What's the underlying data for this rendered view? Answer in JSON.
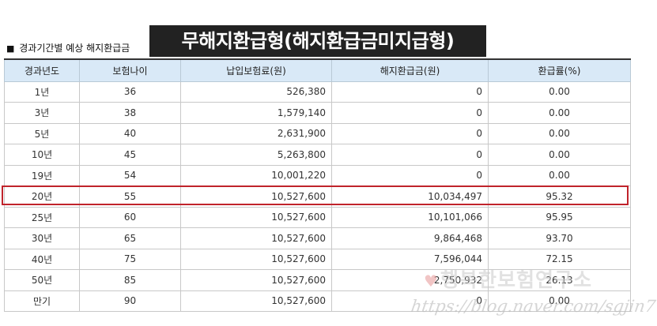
{
  "section_label": "경과기간별 예상 해지환급금",
  "title": "무해지환급형(해지환급금미지급형)",
  "table": {
    "headers": [
      "경과년도",
      "보험나이",
      "납입보험료(원)",
      "해지환급금(원)",
      "환급률(%)"
    ],
    "rows": [
      [
        "1년",
        "36",
        "526,380",
        "0",
        "0.00"
      ],
      [
        "3년",
        "38",
        "1,579,140",
        "0",
        "0.00"
      ],
      [
        "5년",
        "40",
        "2,631,900",
        "0",
        "0.00"
      ],
      [
        "10년",
        "45",
        "5,263,800",
        "0",
        "0.00"
      ],
      [
        "19년",
        "54",
        "10,001,220",
        "0",
        "0.00"
      ],
      [
        "20년",
        "55",
        "10,527,600",
        "10,034,497",
        "95.32"
      ],
      [
        "25년",
        "60",
        "10,527,600",
        "10,101,066",
        "95.95"
      ],
      [
        "30년",
        "65",
        "10,527,600",
        "9,864,468",
        "93.70"
      ],
      [
        "40년",
        "75",
        "10,527,600",
        "7,596,044",
        "72.15"
      ],
      [
        "50년",
        "85",
        "10,527,600",
        "2,750,932",
        "26.13"
      ],
      [
        "만기",
        "90",
        "10,527,600",
        "0",
        "0.00"
      ]
    ]
  },
  "watermark": {
    "name": "행복한보험연구소",
    "url": "https://blog.naver.com/sgjin7"
  },
  "colors": {
    "header_bg": "#d9e9f7",
    "highlight": "#c0232b",
    "banner_bg": "#222222"
  }
}
